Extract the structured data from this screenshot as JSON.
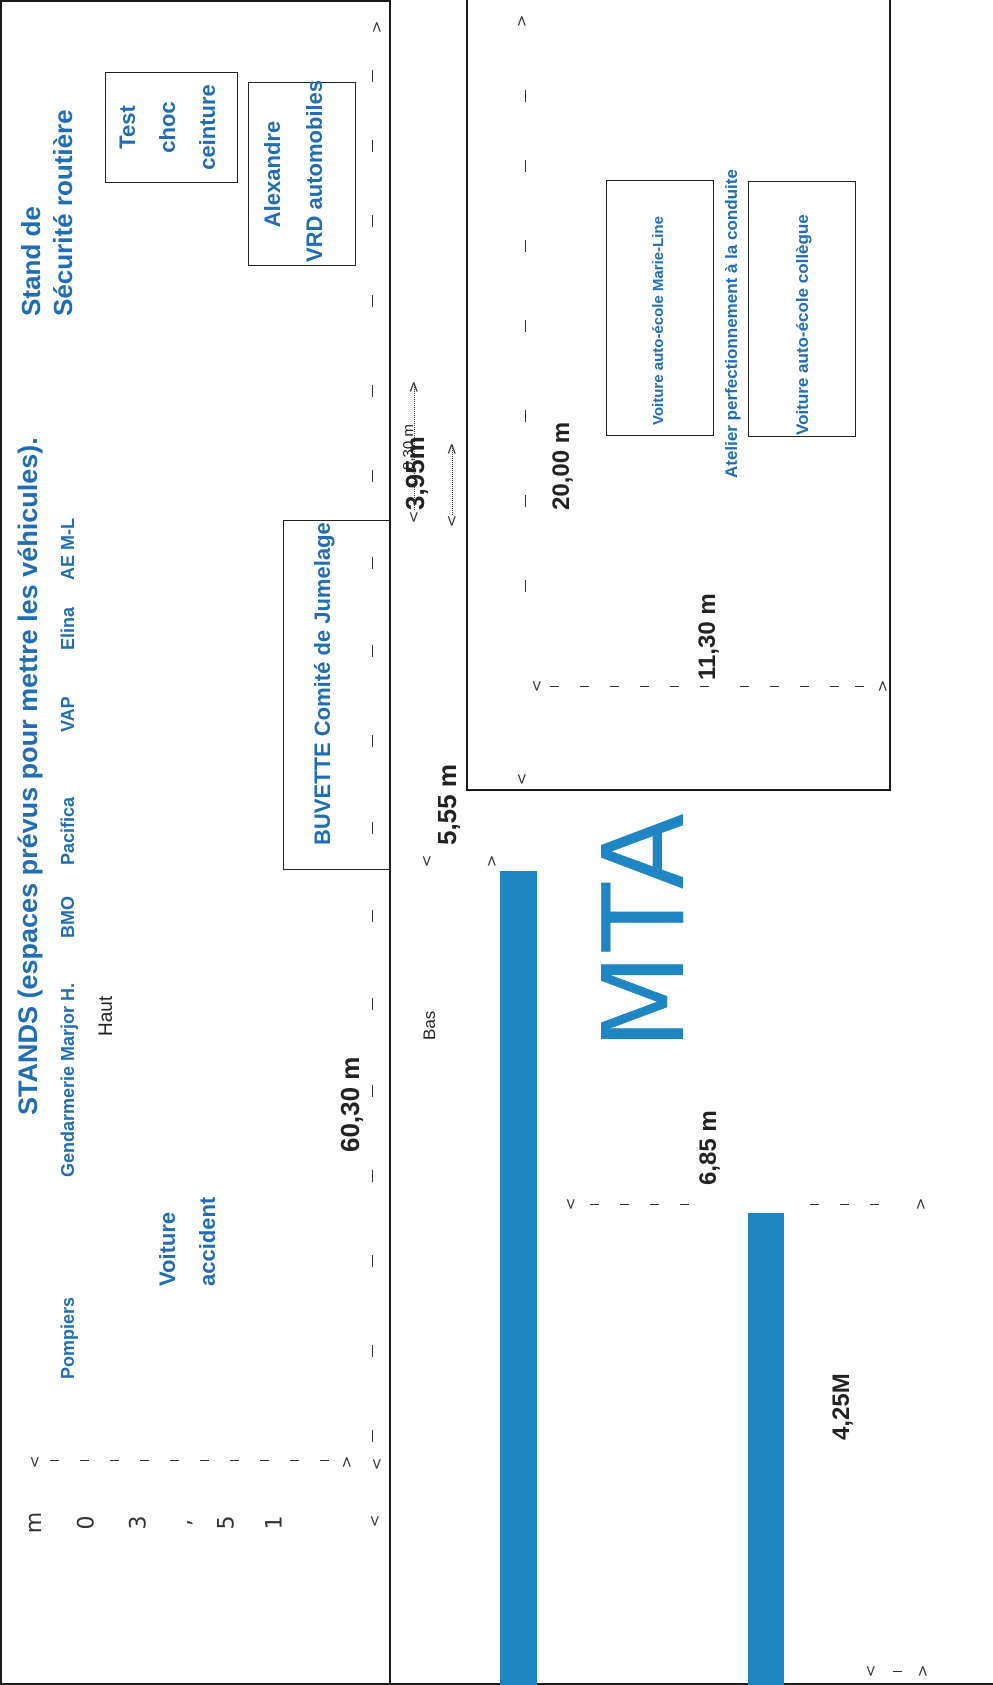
{
  "stands": {
    "title": "STANDS (espaces prévus pour mettre les véhicules).",
    "labels": [
      "Pompiers",
      "Gendarmerie Marjor H.",
      "BMO",
      "Pacifica",
      "VAP",
      "Elina",
      "AE M-L"
    ],
    "haut": "Haut",
    "bas": "Bas"
  },
  "securite": {
    "title_line1": "Stand de",
    "title_line2": "Sécurité routière",
    "test_line1": "Test",
    "test_line2": "choc",
    "test_line3": "ceinture",
    "alexandre_line1": "Alexandre",
    "alexandre_line2": "VRD automobiles"
  },
  "voiture_accident": {
    "line1": "Voiture",
    "line2": "accident"
  },
  "buvette": "BUVETTE Comité de Jumelage",
  "atelier": {
    "label": "Atelier perfectionnement à la conduite",
    "voiture1": "Voiture auto-école Marie-Line",
    "voiture2": "Voiture auto-école collègue"
  },
  "mta": "MTA",
  "dimensions": {
    "d_15_30": [
      "m",
      "0",
      "3",
      ",",
      "5",
      "1"
    ],
    "d_60_30": "60,30 m",
    "d_8_30": "8,30 m",
    "d_3_95": "3,95m",
    "d_5_55": "5,55 m",
    "d_20_00": "20,00 m",
    "d_11_30": "11,30 m",
    "d_6_85": "6,85  m",
    "d_4_25": "4,25M"
  },
  "colors": {
    "accent": "#1f6db4",
    "bar": "#1f86c3"
  }
}
